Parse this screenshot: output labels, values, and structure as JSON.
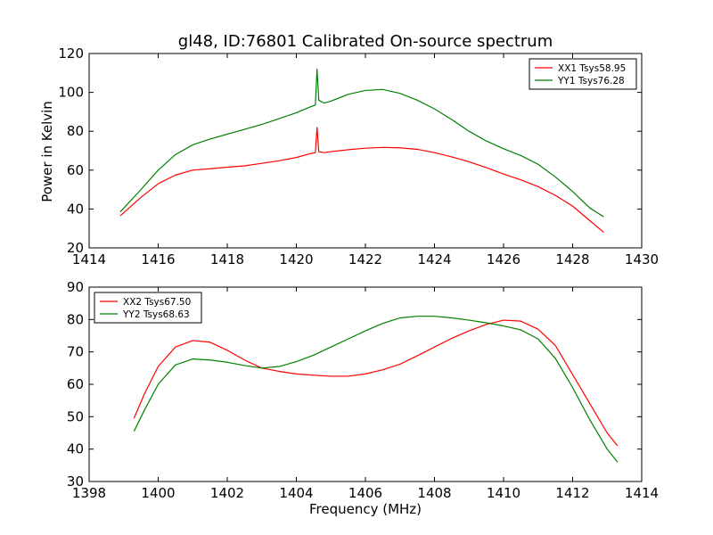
{
  "figure": {
    "title": "gl48, ID:76801 Calibrated On-source spectrum",
    "ylabel": "Power in Kelvin",
    "xlabel": "Frequency (MHz)"
  },
  "colors": {
    "red": "#ff0000",
    "green": "#008000"
  },
  "chart_data": [
    {
      "type": "line",
      "xlim": [
        1414,
        1430
      ],
      "ylim": [
        20,
        120
      ],
      "xticks": [
        1414,
        1416,
        1418,
        1420,
        1422,
        1424,
        1426,
        1428,
        1430
      ],
      "yticks": [
        20,
        40,
        60,
        80,
        100,
        120
      ],
      "grid": false,
      "legend_position": "top-right",
      "series": [
        {
          "name": "XX1 Tsys58.95",
          "color": "#ff0000",
          "x": [
            1414.9,
            1415.5,
            1416.0,
            1416.5,
            1417.0,
            1417.5,
            1418.0,
            1418.5,
            1419.0,
            1419.5,
            1420.0,
            1420.4,
            1420.55,
            1420.6,
            1420.65,
            1420.8,
            1421.0,
            1421.5,
            1422.0,
            1422.5,
            1423.0,
            1423.5,
            1424.0,
            1424.5,
            1425.0,
            1425.5,
            1426.0,
            1426.5,
            1427.0,
            1427.5,
            1428.0,
            1428.5,
            1428.9
          ],
          "y": [
            36.5,
            46,
            53,
            57.5,
            60,
            60.7,
            61.5,
            62.2,
            63.5,
            64.8,
            66.5,
            68.5,
            69,
            82,
            69.5,
            69,
            69.5,
            70.5,
            71.3,
            71.7,
            71.5,
            70.7,
            69,
            66.8,
            64.3,
            61.3,
            58,
            55,
            51.5,
            47,
            41.5,
            34,
            28
          ]
        },
        {
          "name": "YY1 Tsys76.28",
          "color": "#008000",
          "x": [
            1414.9,
            1415.5,
            1416.0,
            1416.5,
            1417.0,
            1417.5,
            1418.0,
            1418.5,
            1419.0,
            1419.5,
            1420.0,
            1420.4,
            1420.55,
            1420.6,
            1420.65,
            1420.8,
            1421.0,
            1421.5,
            1422.0,
            1422.5,
            1423.0,
            1423.5,
            1424.0,
            1424.5,
            1425.0,
            1425.5,
            1426.0,
            1426.5,
            1427.0,
            1427.5,
            1428.0,
            1428.5,
            1428.9
          ],
          "y": [
            38.5,
            50,
            60,
            68,
            73,
            76,
            78.5,
            81,
            83.5,
            86.5,
            89.5,
            92.5,
            93.5,
            112,
            96,
            94.5,
            95.5,
            99,
            101,
            101.5,
            99.5,
            96,
            91.5,
            86,
            80,
            75,
            71,
            67.5,
            63,
            56.5,
            49,
            40.5,
            36
          ]
        }
      ]
    },
    {
      "type": "line",
      "xlim": [
        1398,
        1414
      ],
      "ylim": [
        30,
        90
      ],
      "xticks": [
        1398,
        1400,
        1402,
        1404,
        1406,
        1408,
        1410,
        1412,
        1414
      ],
      "yticks": [
        30,
        40,
        50,
        60,
        70,
        80,
        90
      ],
      "grid": false,
      "legend_position": "top-left",
      "series": [
        {
          "name": "XX2 Tsys67.50",
          "color": "#ff0000",
          "x": [
            1399.3,
            1399.6,
            1400.0,
            1400.5,
            1401.0,
            1401.5,
            1402.0,
            1402.5,
            1403.0,
            1403.5,
            1404.0,
            1404.5,
            1405.0,
            1405.5,
            1406.0,
            1406.5,
            1407.0,
            1407.5,
            1408.0,
            1408.5,
            1409.0,
            1409.5,
            1410.0,
            1410.5,
            1411.0,
            1411.5,
            1412.0,
            1412.5,
            1413.0,
            1413.3
          ],
          "y": [
            49.5,
            57,
            65.5,
            71.5,
            73.5,
            73,
            70.5,
            67.5,
            65,
            64,
            63.2,
            62.8,
            62.5,
            62.5,
            63.2,
            64.5,
            66.2,
            68.8,
            71.5,
            74.2,
            76.5,
            78.5,
            79.8,
            79.5,
            77,
            72,
            63,
            54,
            45,
            41
          ]
        },
        {
          "name": "YY2 Tsys68.63",
          "color": "#008000",
          "x": [
            1399.3,
            1399.6,
            1400.0,
            1400.5,
            1401.0,
            1401.5,
            1402.0,
            1402.5,
            1403.0,
            1403.5,
            1404.0,
            1404.5,
            1405.0,
            1405.5,
            1406.0,
            1406.5,
            1407.0,
            1407.5,
            1408.0,
            1408.5,
            1409.0,
            1409.5,
            1410.0,
            1410.5,
            1411.0,
            1411.5,
            1412.0,
            1412.5,
            1413.0,
            1413.3
          ],
          "y": [
            45.5,
            52,
            60,
            66,
            67.8,
            67.5,
            66.8,
            65.8,
            65,
            65.5,
            67,
            69,
            71.5,
            74,
            76.5,
            78.8,
            80.5,
            81,
            81,
            80.5,
            79.8,
            79,
            78,
            76.8,
            74,
            68,
            59,
            49,
            40,
            36
          ]
        }
      ]
    }
  ]
}
